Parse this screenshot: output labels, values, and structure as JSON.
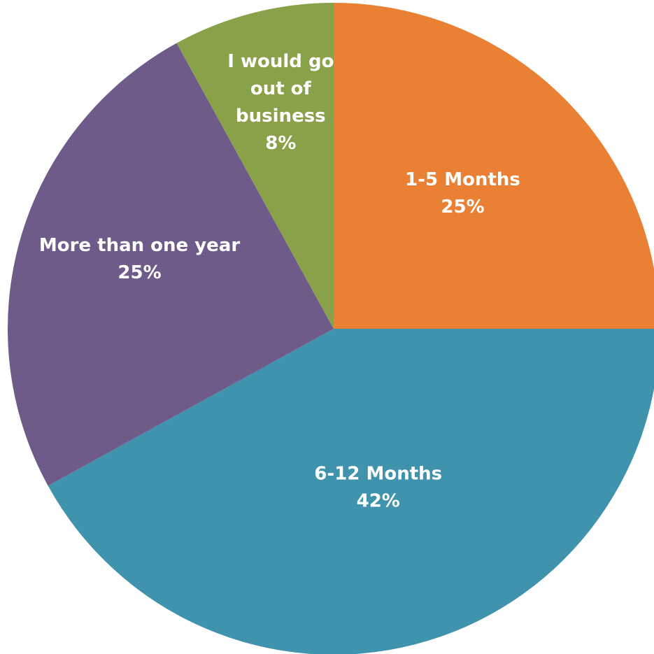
{
  "chart_data": {
    "type": "pie",
    "title": "",
    "start_angle_deg": 0,
    "direction": "clockwise",
    "slices": [
      {
        "label_lines": [
          "1-5 Months"
        ],
        "percent_label": "25%",
        "value": 25,
        "color": "#E98033"
      },
      {
        "label_lines": [
          "6-12 Months"
        ],
        "percent_label": "42%",
        "value": 42,
        "color": "#3F93AC"
      },
      {
        "label_lines": [
          "More than one year"
        ],
        "percent_label": "25%",
        "value": 25,
        "color": "#6F5B8A"
      },
      {
        "label_lines": [
          "I would go",
          "out of",
          "business"
        ],
        "percent_label": "8%",
        "value": 8,
        "color": "#89A24A"
      }
    ],
    "legend": "none",
    "data_labels": "inside"
  }
}
